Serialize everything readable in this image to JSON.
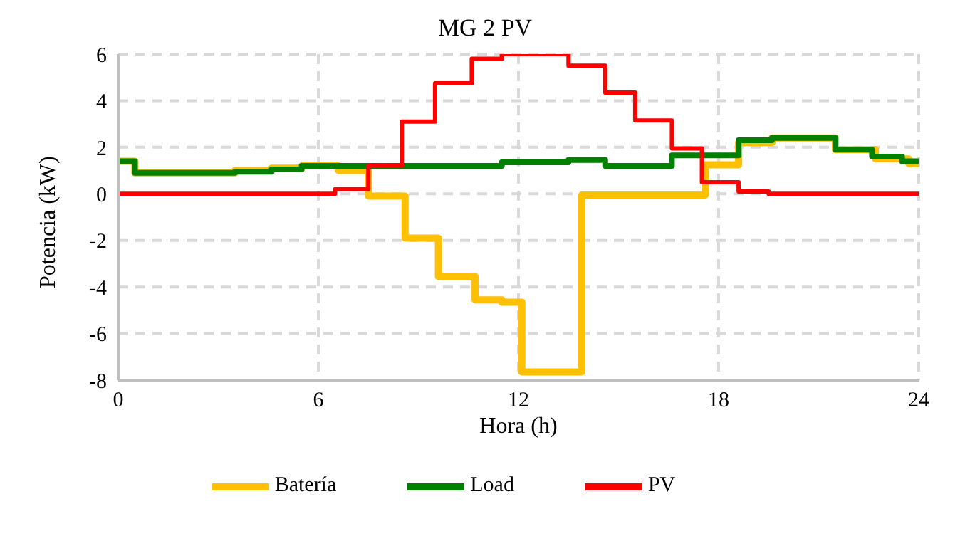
{
  "chart_data": {
    "type": "step",
    "title": "MG 2 PV",
    "xlabel": "Hora (h)",
    "ylabel": "Potencia (kW)",
    "series": [
      {
        "name": "Batería",
        "color": "#ffc000",
        "x": [
          0,
          0.5,
          3.5,
          4.6,
          5.5,
          6.6,
          7.5,
          8.6,
          9.6,
          10.7,
          11.5,
          12.1,
          13.9,
          17.6,
          18.6,
          19.6,
          21.5,
          22.7,
          23.7,
          24
        ],
        "values": [
          1.4,
          0.9,
          1.0,
          1.1,
          1.2,
          1.0,
          -0.1,
          -1.9,
          -3.55,
          -4.55,
          -4.65,
          -7.65,
          -0.05,
          1.25,
          2.2,
          2.4,
          1.9,
          1.5,
          1.3,
          1.3
        ]
      },
      {
        "name": "Load",
        "color": "#008000",
        "x": [
          0,
          0.5,
          3.5,
          4.6,
          5.5,
          11.5,
          13.5,
          14.6,
          16.6,
          18.6,
          19.6,
          21.5,
          22.6,
          23.5,
          24
        ],
        "values": [
          1.4,
          0.9,
          0.95,
          1.05,
          1.2,
          1.35,
          1.45,
          1.2,
          1.65,
          2.3,
          2.4,
          1.9,
          1.6,
          1.4,
          1.4
        ]
      },
      {
        "name": "PV",
        "color": "#ff0000",
        "x": [
          0,
          6.5,
          7.5,
          8.5,
          9.5,
          10.6,
          11.5,
          13.5,
          14.6,
          15.5,
          16.6,
          17.5,
          18.6,
          19.5,
          24
        ],
        "values": [
          0,
          0.2,
          1.2,
          3.1,
          4.75,
          5.8,
          6.0,
          5.5,
          4.35,
          3.15,
          1.95,
          0.5,
          0.1,
          0,
          0
        ]
      }
    ],
    "xlim": [
      0,
      24
    ],
    "xticks": [
      0,
      6,
      12,
      18,
      24
    ],
    "ylim": [
      -8,
      6
    ],
    "yticks": [
      -8,
      -6,
      -4,
      -2,
      0,
      2,
      4,
      6
    ],
    "grid": true,
    "legend": "bottom",
    "line_style": "solid",
    "marker": "none"
  }
}
